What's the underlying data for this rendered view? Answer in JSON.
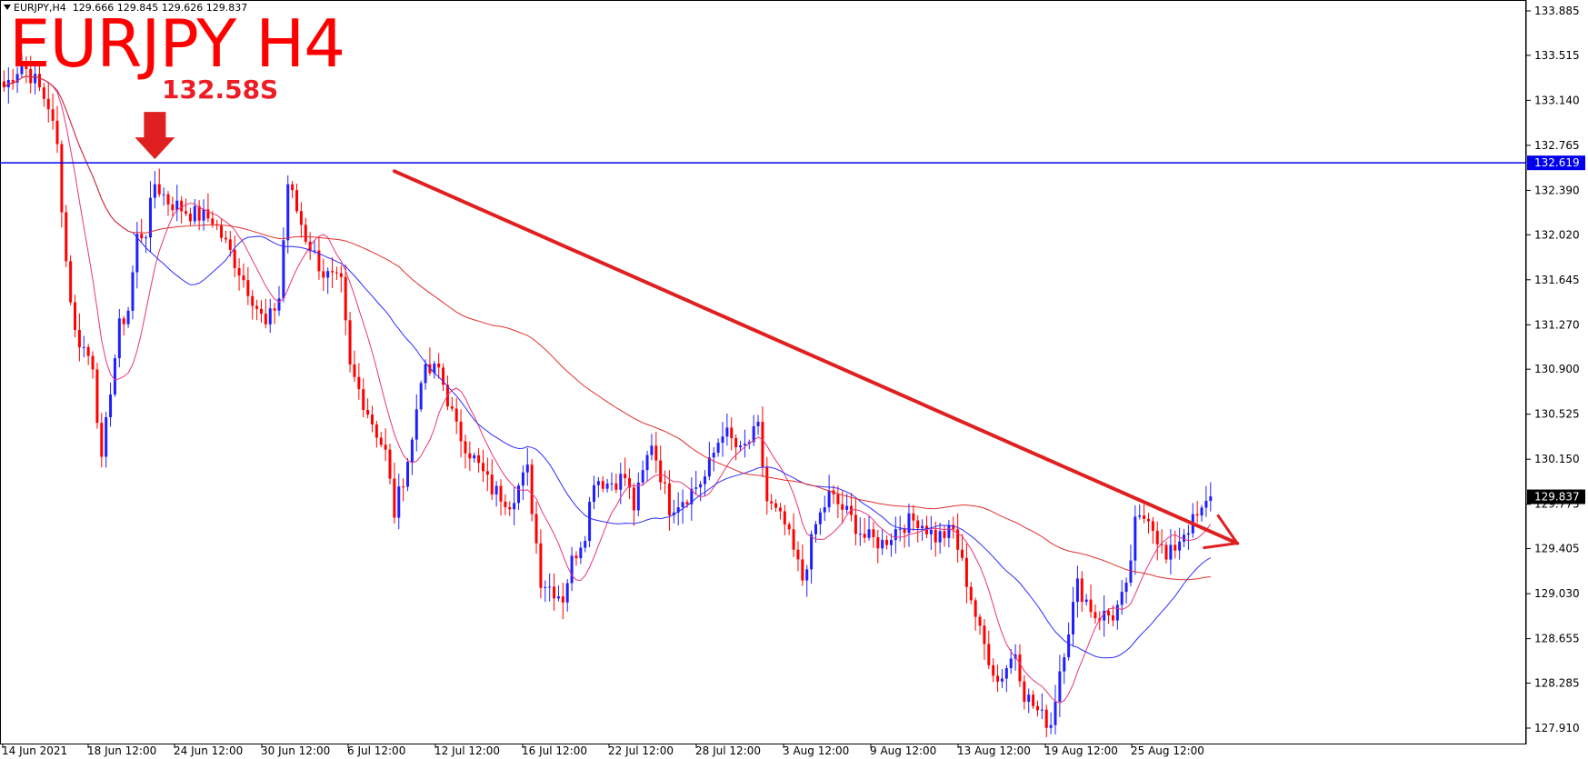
{
  "header": {
    "symbol": "EURJPY,H4",
    "ohlc": "129.666 129.845 129.626 129.837"
  },
  "annotations": {
    "title": "EURJPY H4",
    "level_label": "132.58S"
  },
  "colors": {
    "bull": "#1f1fff",
    "bear": "#ff0000",
    "ma_fast": "#e8357a",
    "ma_mid": "#2d2dff",
    "ma_slow": "#e0302c",
    "hline": "#0000ee",
    "trend": "#e02020",
    "marker": "#e02020"
  },
  "chart_data": {
    "type": "candlestick",
    "symbol": "EURJPY",
    "timeframe": "H4",
    "y_ticks": [
      "133.885",
      "133.515",
      "133.140",
      "132.765",
      "132.390",
      "132.020",
      "131.645",
      "131.270",
      "130.900",
      "130.525",
      "130.150",
      "129.775",
      "129.405",
      "129.030",
      "128.655",
      "128.285",
      "127.910"
    ],
    "ylim": [
      127.85,
      133.95
    ],
    "x_ticks": [
      "14 Jun 2021",
      "18 Jun 12:00",
      "24 Jun 12:00",
      "30 Jun 12:00",
      "6 Jul 12:00",
      "12 Jul 12:00",
      "16 Jul 12:00",
      "22 Jul 12:00",
      "28 Jul 12:00",
      "3 Aug 12:00",
      "9 Aug 12:00",
      "13 Aug 12:00",
      "19 Aug 12:00",
      "25 Aug 12:00"
    ],
    "horizontal_line": {
      "value": 132.619,
      "label": "132.619"
    },
    "current_price": {
      "value": 129.837,
      "label": "129.837"
    },
    "trendline": {
      "start": {
        "bar": 88,
        "price": 132.55
      },
      "end": {
        "bar": 278,
        "price": 129.45
      }
    },
    "arrow_marker_bar": 34,
    "close_path": [
      [
        0,
        133.25
      ],
      [
        4,
        133.45
      ],
      [
        7,
        133.3
      ],
      [
        10,
        133.1
      ],
      [
        12,
        132.75
      ],
      [
        14,
        131.8
      ],
      [
        16,
        131.2
      ],
      [
        20,
        130.95
      ],
      [
        22,
        130.1
      ],
      [
        24,
        130.75
      ],
      [
        26,
        131.25
      ],
      [
        28,
        131.4
      ],
      [
        30,
        132.0
      ],
      [
        32,
        132.05
      ],
      [
        34,
        132.45
      ],
      [
        37,
        132.3
      ],
      [
        42,
        132.2
      ],
      [
        47,
        132.15
      ],
      [
        52,
        131.8
      ],
      [
        56,
        131.5
      ],
      [
        59,
        131.25
      ],
      [
        62,
        131.5
      ],
      [
        64,
        132.45
      ],
      [
        68,
        132.0
      ],
      [
        72,
        131.7
      ],
      [
        76,
        131.6
      ],
      [
        78,
        130.9
      ],
      [
        82,
        130.55
      ],
      [
        86,
        130.2
      ],
      [
        88,
        129.7
      ],
      [
        92,
        130.3
      ],
      [
        94,
        130.85
      ],
      [
        98,
        130.9
      ],
      [
        102,
        130.4
      ],
      [
        106,
        130.15
      ],
      [
        110,
        129.9
      ],
      [
        114,
        129.8
      ],
      [
        118,
        130.05
      ],
      [
        121,
        129.15
      ],
      [
        126,
        129.0
      ],
      [
        128,
        129.3
      ],
      [
        131,
        129.55
      ],
      [
        133,
        130.0
      ],
      [
        136,
        129.95
      ],
      [
        140,
        130.0
      ],
      [
        142,
        129.75
      ],
      [
        146,
        130.3
      ],
      [
        150,
        129.75
      ],
      [
        154,
        129.85
      ],
      [
        158,
        130.0
      ],
      [
        162,
        130.4
      ],
      [
        166,
        130.2
      ],
      [
        170,
        130.4
      ],
      [
        172,
        129.8
      ],
      [
        176,
        129.6
      ],
      [
        180,
        129.15
      ],
      [
        183,
        129.6
      ],
      [
        186,
        129.85
      ],
      [
        190,
        129.7
      ],
      [
        194,
        129.5
      ],
      [
        198,
        129.45
      ],
      [
        202,
        129.6
      ],
      [
        206,
        129.65
      ],
      [
        210,
        129.5
      ],
      [
        214,
        129.55
      ],
      [
        218,
        129.0
      ],
      [
        220,
        128.7
      ],
      [
        224,
        128.3
      ],
      [
        228,
        128.55
      ],
      [
        230,
        128.2
      ],
      [
        234,
        128.0
      ],
      [
        236,
        127.95
      ],
      [
        238,
        128.4
      ],
      [
        242,
        129.1
      ],
      [
        246,
        128.85
      ],
      [
        250,
        128.85
      ],
      [
        253,
        129.05
      ],
      [
        255,
        129.6
      ],
      [
        258,
        129.7
      ],
      [
        262,
        129.3
      ],
      [
        266,
        129.55
      ],
      [
        270,
        129.7
      ],
      [
        272,
        129.84
      ]
    ]
  }
}
